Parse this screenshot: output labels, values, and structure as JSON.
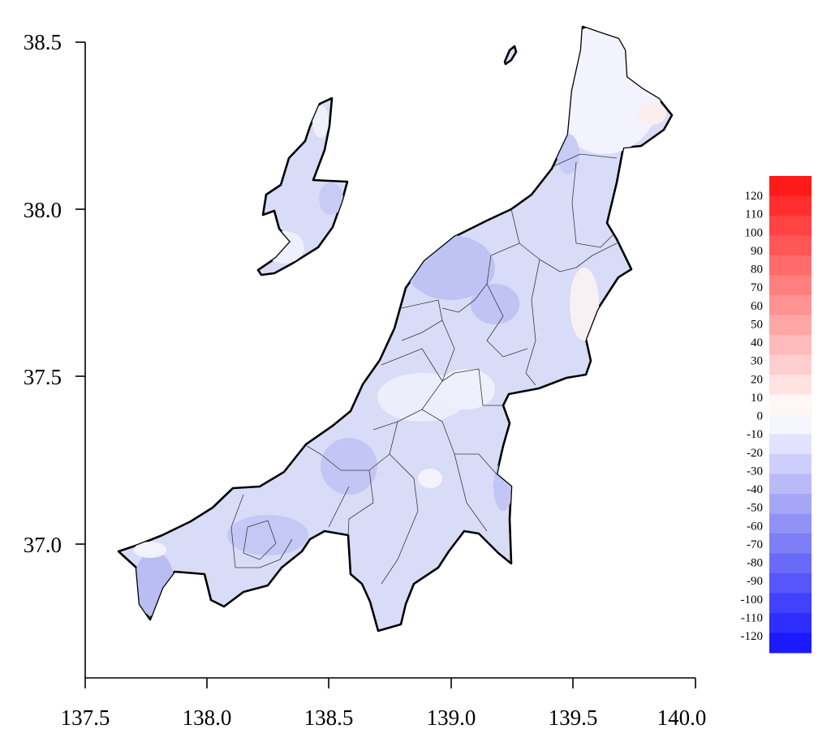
{
  "map": {
    "x_axis": {
      "ticks": [
        137.5,
        138.0,
        138.5,
        139.0,
        139.5,
        140.0
      ],
      "tick_labels": [
        "137.5",
        "138.0",
        "138.5",
        "139.0",
        "139.5",
        "140.0"
      ],
      "range": [
        137.5,
        140.0
      ]
    },
    "y_axis": {
      "ticks": [
        37.0,
        37.5,
        38.0,
        38.5
      ],
      "tick_labels": [
        "37.0",
        "37.5",
        "38.0",
        "38.5"
      ],
      "range": [
        36.6,
        38.5
      ]
    },
    "colorbar": {
      "labels": [
        "120",
        "110",
        "100",
        "90",
        "80",
        "70",
        "60",
        "50",
        "40",
        "30",
        "20",
        "10",
        "0",
        "-10",
        "-20",
        "-30",
        "-40",
        "-50",
        "-60",
        "-70",
        "-80",
        "-90",
        "-100",
        "-110",
        "-120"
      ],
      "colors": [
        "#ff1a1a",
        "#ff2e2e",
        "#ff4242",
        "#ff5656",
        "#ff6a6a",
        "#ff7e7e",
        "#ff9292",
        "#ffa6a6",
        "#ffbaba",
        "#ffcece",
        "#ffe2e2",
        "#fff6f6",
        "#f6f6ff",
        "#e2e2ff",
        "#cecefc",
        "#babaf9",
        "#a6a6f6",
        "#9292f6",
        "#7e7ef6",
        "#6a6af8",
        "#5656fa",
        "#4242fc",
        "#2e2efe",
        "#1a1aff"
      ]
    },
    "region_fill_color": "#d9dcf7",
    "dominant_value_range": "-10 to -40"
  }
}
